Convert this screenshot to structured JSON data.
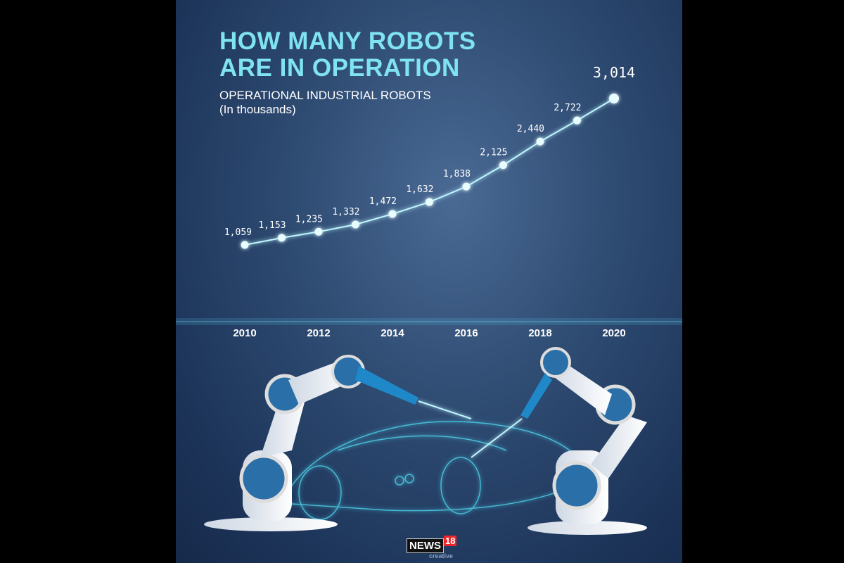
{
  "title_line1": "HOW MANY ROBOTS",
  "title_line2": "ARE IN OPERATION",
  "subtitle_line1": "OPERATIONAL INDUSTRIAL ROBOTS",
  "subtitle_line2": "(In thousands)",
  "logo": {
    "text": "NEWS18",
    "sub": "creative"
  },
  "colors": {
    "background": "#2f4c73",
    "accent": "#5fe0ff",
    "title": "#7fe3f0"
  },
  "chart_data": {
    "type": "line",
    "title": "HOW MANY ROBOTS ARE IN OPERATION",
    "subtitle": "OPERATIONAL INDUSTRIAL ROBOTS (In thousands)",
    "x": [
      2010,
      2011,
      2012,
      2013,
      2014,
      2015,
      2016,
      2017,
      2018,
      2019,
      2020
    ],
    "values": [
      1059,
      1153,
      1235,
      1332,
      1472,
      1632,
      1838,
      2125,
      2440,
      2722,
      3014
    ],
    "labels": [
      "1,059",
      "1,153",
      "1,235",
      "1,332",
      "1,472",
      "1,632",
      "1,838",
      "2,125",
      "2,440",
      "2,722",
      "3,014"
    ],
    "xtick_labels": [
      "2010",
      "2012",
      "2014",
      "2016",
      "2018",
      "2020"
    ],
    "xtick_values": [
      2010,
      2012,
      2014,
      2016,
      2018,
      2020
    ],
    "ylim": [
      0,
      3014
    ],
    "grid": false,
    "legend": "none"
  }
}
